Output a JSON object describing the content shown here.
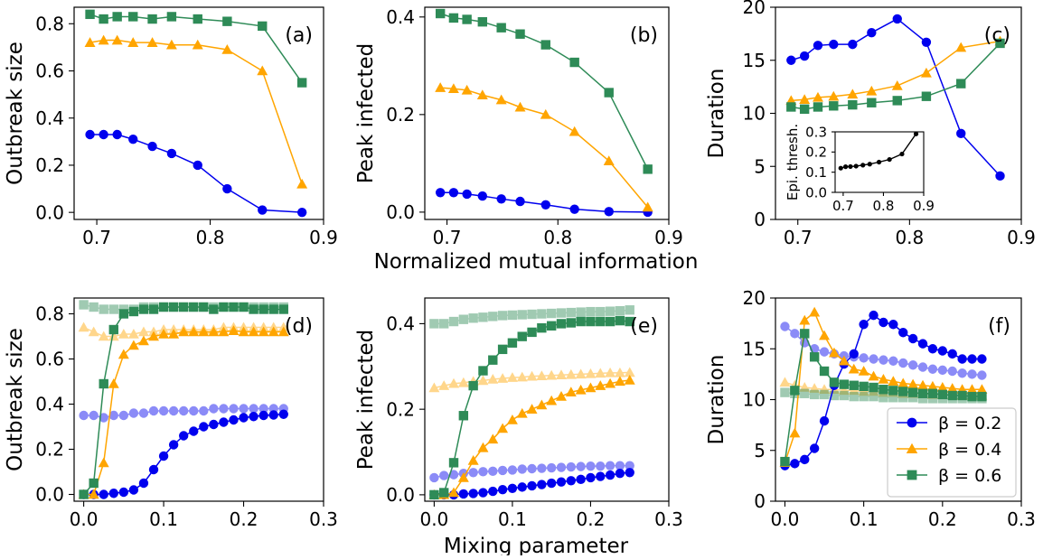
{
  "colors": {
    "b02": "#0000ee",
    "b04": "#ffa500",
    "b06": "#2e8b57"
  },
  "shared_xlabels": {
    "top": "Normalized mutual information",
    "bottom": "Mixing parameter"
  },
  "legend": {
    "items": [
      "β = 0.2",
      "β = 0.4",
      "β = 0.6"
    ],
    "placement": "lower-right of panel (f)"
  },
  "chart_data": [
    {
      "id": "a",
      "panel_label": "(a)",
      "type": "line",
      "ylabel": "Outbreak size",
      "xlabel": "",
      "xlim": [
        0.68,
        0.9
      ],
      "ylim": [
        -0.03,
        0.87
      ],
      "xticks": [
        0.7,
        0.8,
        0.9
      ],
      "yticks": [
        0.0,
        0.2,
        0.4,
        0.6,
        0.8
      ],
      "x": [
        0.694,
        0.706,
        0.718,
        0.732,
        0.749,
        0.766,
        0.789,
        0.815,
        0.846,
        0.881
      ],
      "series": [
        {
          "name": "β = 0.2",
          "marker": "circle",
          "color": "#0000ee",
          "values": [
            0.33,
            0.33,
            0.33,
            0.31,
            0.28,
            0.25,
            0.2,
            0.1,
            0.01,
            0.0
          ]
        },
        {
          "name": "β = 0.4",
          "marker": "triangle",
          "color": "#ffa500",
          "values": [
            0.72,
            0.73,
            0.73,
            0.72,
            0.72,
            0.71,
            0.71,
            0.69,
            0.6,
            0.12
          ]
        },
        {
          "name": "β = 0.6",
          "marker": "square",
          "color": "#2e8b57",
          "values": [
            0.84,
            0.82,
            0.83,
            0.83,
            0.82,
            0.83,
            0.82,
            0.81,
            0.79,
            0.55
          ]
        }
      ]
    },
    {
      "id": "b",
      "panel_label": "(b)",
      "type": "line",
      "ylabel": "Peak infected",
      "xlabel": "",
      "xlim": [
        0.68,
        0.9
      ],
      "ylim": [
        -0.015,
        0.42
      ],
      "xticks": [
        0.7,
        0.8,
        0.9
      ],
      "yticks": [
        0.0,
        0.2,
        0.4
      ],
      "x": [
        0.694,
        0.706,
        0.718,
        0.732,
        0.749,
        0.766,
        0.789,
        0.815,
        0.846,
        0.881
      ],
      "series": [
        {
          "name": "β = 0.2",
          "marker": "circle",
          "color": "#0000ee",
          "values": [
            0.04,
            0.04,
            0.037,
            0.033,
            0.027,
            0.022,
            0.015,
            0.006,
            0.001,
            0.0
          ]
        },
        {
          "name": "β = 0.4",
          "marker": "triangle",
          "color": "#ffa500",
          "values": [
            0.255,
            0.253,
            0.25,
            0.24,
            0.23,
            0.215,
            0.2,
            0.165,
            0.105,
            0.01
          ]
        },
        {
          "name": "β = 0.6",
          "marker": "square",
          "color": "#2e8b57",
          "values": [
            0.407,
            0.398,
            0.395,
            0.39,
            0.378,
            0.365,
            0.343,
            0.307,
            0.245,
            0.088
          ]
        }
      ]
    },
    {
      "id": "c",
      "panel_label": "(c)",
      "type": "line",
      "ylabel": "Duration",
      "xlabel": "",
      "xlim": [
        0.68,
        0.9
      ],
      "ylim": [
        0,
        20
      ],
      "xticks": [
        0.7,
        0.8,
        0.9
      ],
      "yticks": [
        0,
        5,
        10,
        15,
        20
      ],
      "x": [
        0.694,
        0.706,
        0.718,
        0.732,
        0.749,
        0.766,
        0.789,
        0.815,
        0.846,
        0.881
      ],
      "series": [
        {
          "name": "β = 0.2",
          "marker": "circle",
          "color": "#0000ee",
          "values": [
            15.0,
            15.4,
            16.4,
            16.5,
            16.5,
            17.6,
            18.9,
            16.7,
            8.1,
            4.1
          ]
        },
        {
          "name": "β = 0.4",
          "marker": "triangle",
          "color": "#ffa500",
          "values": [
            11.2,
            11.3,
            11.5,
            11.6,
            11.8,
            12.1,
            12.6,
            13.8,
            16.2,
            16.8
          ]
        },
        {
          "name": "β = 0.6",
          "marker": "square",
          "color": "#2e8b57",
          "values": [
            10.6,
            10.4,
            10.6,
            10.7,
            10.8,
            11.0,
            11.2,
            11.6,
            12.8,
            16.6
          ]
        }
      ],
      "inset": {
        "ylabel": "Epi. thresh.",
        "xlim": [
          0.68,
          0.9
        ],
        "ylim": [
          0,
          0.3
        ],
        "xticks": [
          0.7,
          0.8,
          0.9
        ],
        "yticks": [
          0.0,
          0.1,
          0.2,
          0.3
        ],
        "x": [
          0.694,
          0.706,
          0.718,
          0.732,
          0.749,
          0.766,
          0.789,
          0.815,
          0.846,
          0.881
        ],
        "values": [
          0.12,
          0.127,
          0.128,
          0.13,
          0.135,
          0.14,
          0.15,
          0.163,
          0.19,
          0.29
        ]
      }
    },
    {
      "id": "d",
      "panel_label": "(d)",
      "type": "line",
      "ylabel": "Outbreak size",
      "xlabel": "",
      "xlim": [
        -0.012,
        0.3
      ],
      "ylim": [
        -0.03,
        0.87
      ],
      "xticks": [
        0.0,
        0.1,
        0.2,
        0.3
      ],
      "yticks": [
        0.0,
        0.2,
        0.4,
        0.6,
        0.8
      ],
      "x": [
        0.0,
        0.0125,
        0.025,
        0.0375,
        0.05,
        0.0625,
        0.075,
        0.0875,
        0.1,
        0.1125,
        0.125,
        0.1375,
        0.15,
        0.1625,
        0.175,
        0.1875,
        0.2,
        0.2125,
        0.225,
        0.2375,
        0.25
      ],
      "series": [
        {
          "name": "β = 0.2",
          "marker": "circle",
          "color": "#0000ee",
          "values": [
            0.0,
            0.0,
            0.0,
            0.005,
            0.01,
            0.02,
            0.05,
            0.11,
            0.17,
            0.22,
            0.26,
            0.28,
            0.3,
            0.31,
            0.32,
            0.33,
            0.34,
            0.345,
            0.35,
            0.352,
            0.355
          ]
        },
        {
          "name": "β = 0.4",
          "marker": "triangle",
          "color": "#ffa500",
          "values": [
            0.0,
            0.0,
            0.14,
            0.49,
            0.62,
            0.66,
            0.68,
            0.7,
            0.71,
            0.71,
            0.72,
            0.72,
            0.72,
            0.72,
            0.72,
            0.725,
            0.72,
            0.72,
            0.72,
            0.72,
            0.72
          ]
        },
        {
          "name": "β = 0.6",
          "marker": "square",
          "color": "#2e8b57",
          "values": [
            0.0,
            0.05,
            0.49,
            0.73,
            0.8,
            0.81,
            0.82,
            0.82,
            0.83,
            0.83,
            0.83,
            0.83,
            0.83,
            0.82,
            0.83,
            0.83,
            0.83,
            0.82,
            0.82,
            0.82,
            0.82
          ]
        }
      ],
      "faded_series": [
        {
          "marker": "circle",
          "color": "#0000ee",
          "values": [
            0.35,
            0.35,
            0.34,
            0.35,
            0.35,
            0.36,
            0.36,
            0.37,
            0.37,
            0.37,
            0.37,
            0.37,
            0.37,
            0.38,
            0.38,
            0.38,
            0.38,
            0.38,
            0.38,
            0.38,
            0.38
          ]
        },
        {
          "marker": "triangle",
          "color": "#ffa500",
          "values": [
            0.74,
            0.72,
            0.7,
            0.7,
            0.71,
            0.71,
            0.72,
            0.72,
            0.73,
            0.73,
            0.73,
            0.73,
            0.73,
            0.73,
            0.74,
            0.74,
            0.74,
            0.74,
            0.74,
            0.74,
            0.74
          ]
        },
        {
          "marker": "square",
          "color": "#2e8b57",
          "values": [
            0.84,
            0.83,
            0.82,
            0.82,
            0.82,
            0.82,
            0.83,
            0.83,
            0.83,
            0.83,
            0.83,
            0.83,
            0.83,
            0.83,
            0.83,
            0.83,
            0.83,
            0.83,
            0.83,
            0.83,
            0.83
          ]
        }
      ]
    },
    {
      "id": "e",
      "panel_label": "(e)",
      "type": "line",
      "ylabel": "Peak infected",
      "xlabel": "",
      "xlim": [
        -0.012,
        0.3
      ],
      "ylim": [
        -0.015,
        0.46
      ],
      "xticks": [
        0.0,
        0.1,
        0.2,
        0.3
      ],
      "yticks": [
        0.0,
        0.2,
        0.4
      ],
      "x": [
        0.0,
        0.0125,
        0.025,
        0.0375,
        0.05,
        0.0625,
        0.075,
        0.0875,
        0.1,
        0.1125,
        0.125,
        0.1375,
        0.15,
        0.1625,
        0.175,
        0.1875,
        0.2,
        0.2125,
        0.225,
        0.2375,
        0.25
      ],
      "series": [
        {
          "name": "β = 0.2",
          "marker": "circle",
          "color": "#0000ee",
          "values": [
            0.0,
            0.0,
            0.0,
            0.002,
            0.003,
            0.005,
            0.008,
            0.012,
            0.015,
            0.018,
            0.021,
            0.024,
            0.027,
            0.03,
            0.033,
            0.036,
            0.04,
            0.043,
            0.046,
            0.05,
            0.052
          ]
        },
        {
          "name": "β = 0.4",
          "marker": "triangle",
          "color": "#ffa500",
          "values": [
            0.0,
            0.0,
            0.005,
            0.04,
            0.08,
            0.11,
            0.13,
            0.155,
            0.175,
            0.19,
            0.2,
            0.21,
            0.22,
            0.23,
            0.24,
            0.245,
            0.25,
            0.255,
            0.26,
            0.265,
            0.268
          ]
        },
        {
          "name": "β = 0.6",
          "marker": "square",
          "color": "#2e8b57",
          "values": [
            0.0,
            0.005,
            0.075,
            0.185,
            0.255,
            0.29,
            0.315,
            0.34,
            0.355,
            0.37,
            0.38,
            0.39,
            0.395,
            0.4,
            0.402,
            0.405,
            0.405,
            0.405,
            0.405,
            0.407,
            0.405
          ]
        }
      ],
      "faded_series": [
        {
          "marker": "circle",
          "color": "#0000ee",
          "values": [
            0.04,
            0.045,
            0.047,
            0.05,
            0.052,
            0.054,
            0.055,
            0.057,
            0.058,
            0.06,
            0.061,
            0.062,
            0.063,
            0.064,
            0.065,
            0.066,
            0.067,
            0.067,
            0.068,
            0.068,
            0.068
          ]
        },
        {
          "marker": "triangle",
          "color": "#ffa500",
          "values": [
            0.25,
            0.255,
            0.26,
            0.262,
            0.265,
            0.267,
            0.27,
            0.272,
            0.274,
            0.275,
            0.277,
            0.278,
            0.279,
            0.28,
            0.281,
            0.282,
            0.283,
            0.284,
            0.285,
            0.285,
            0.286
          ]
        },
        {
          "marker": "square",
          "color": "#2e8b57",
          "values": [
            0.4,
            0.4,
            0.405,
            0.41,
            0.413,
            0.415,
            0.417,
            0.419,
            0.42,
            0.421,
            0.422,
            0.423,
            0.424,
            0.425,
            0.426,
            0.427,
            0.428,
            0.428,
            0.429,
            0.43,
            0.432
          ]
        }
      ]
    },
    {
      "id": "f",
      "panel_label": "(f)",
      "type": "line",
      "ylabel": "Duration",
      "xlabel": "",
      "xlim": [
        -0.012,
        0.3
      ],
      "ylim": [
        0,
        20
      ],
      "xticks": [
        0.0,
        0.1,
        0.2,
        0.3
      ],
      "yticks": [
        0,
        5,
        10,
        15,
        20
      ],
      "x": [
        0.0,
        0.0125,
        0.025,
        0.0375,
        0.05,
        0.0625,
        0.075,
        0.0875,
        0.1,
        0.1125,
        0.125,
        0.1375,
        0.15,
        0.1625,
        0.175,
        0.1875,
        0.2,
        0.2125,
        0.225,
        0.2375,
        0.25
      ],
      "series": [
        {
          "name": "β = 0.2",
          "marker": "circle",
          "color": "#0000ee",
          "values": [
            3.5,
            3.7,
            4.1,
            5.2,
            7.9,
            11.4,
            13.5,
            14.5,
            17.4,
            18.3,
            17.6,
            17.4,
            16.6,
            16.0,
            15.5,
            15.0,
            14.8,
            14.5,
            14.0,
            14.0,
            14.0
          ]
        },
        {
          "name": "β = 0.4",
          "marker": "triangle",
          "color": "#ffa500",
          "values": [
            3.8,
            6.7,
            17.8,
            18.6,
            16.3,
            14.6,
            13.8,
            13.0,
            12.8,
            12.3,
            12.0,
            11.8,
            11.6,
            11.5,
            11.4,
            11.3,
            11.2,
            11.1,
            11.0,
            11.0,
            11.0
          ]
        },
        {
          "name": "β = 0.6",
          "marker": "square",
          "color": "#2e8b57",
          "values": [
            3.9,
            10.9,
            16.5,
            14.2,
            12.8,
            11.7,
            11.5,
            11.4,
            11.3,
            11.2,
            11.0,
            10.9,
            10.8,
            10.7,
            10.6,
            10.6,
            10.5,
            10.4,
            10.4,
            10.3,
            10.3
          ]
        }
      ],
      "faded_series": [
        {
          "marker": "circle",
          "color": "#0000ee",
          "values": [
            17.2,
            16.5,
            15.6,
            15.0,
            14.7,
            14.5,
            14.3,
            14.2,
            14.1,
            14.0,
            13.9,
            13.8,
            13.6,
            13.4,
            13.2,
            13.0,
            12.9,
            12.8,
            12.6,
            12.5,
            12.4
          ]
        },
        {
          "marker": "triangle",
          "color": "#ffa500",
          "values": [
            11.7,
            11.4,
            11.2,
            11.1,
            11.0,
            11.0,
            10.9,
            10.9,
            10.8,
            10.8,
            10.7,
            10.7,
            10.6,
            10.6,
            10.6,
            10.5,
            10.5,
            10.5,
            10.4,
            10.4,
            10.4
          ]
        },
        {
          "marker": "square",
          "color": "#2e8b57",
          "values": [
            10.7,
            10.6,
            10.6,
            10.5,
            10.5,
            10.4,
            10.4,
            10.3,
            10.3,
            10.3,
            10.2,
            10.2,
            10.2,
            10.2,
            10.1,
            10.1,
            10.1,
            10.1,
            10.1,
            10.1,
            10.1
          ]
        }
      ]
    }
  ]
}
